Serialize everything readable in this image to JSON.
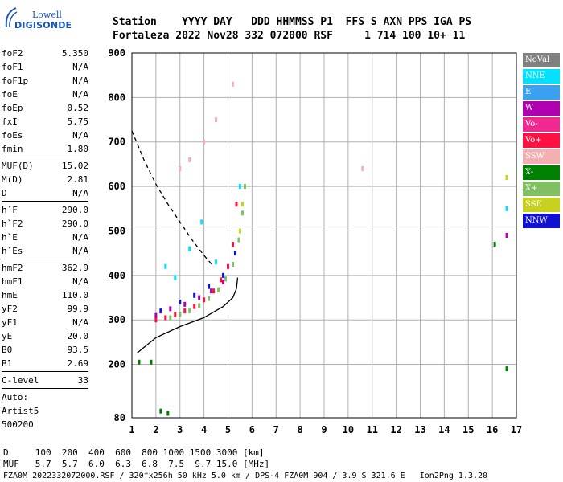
{
  "logo": {
    "line1": "Lowell",
    "line2": "DIGISONDE"
  },
  "header": {
    "line1": "Station    YYYY DAY   DDD HHMMSS P1  FFS S AXN PPS IGA PS",
    "line2": "Fortaleza 2022 Nov28 332 072000 RSF     1 714 100 10+ 11"
  },
  "params": {
    "group1": [
      {
        "name": "foF2",
        "value": "5.350"
      },
      {
        "name": "foF1",
        "value": "N/A"
      },
      {
        "name": "foF1p",
        "value": "N/A"
      },
      {
        "name": "foE",
        "value": "N/A"
      },
      {
        "name": "foEp",
        "value": "0.52"
      },
      {
        "name": "fxI",
        "value": "5.75"
      },
      {
        "name": "foEs",
        "value": "N/A"
      },
      {
        "name": "fmin",
        "value": "1.80"
      }
    ],
    "group2": [
      {
        "name": "MUF(D)",
        "value": "15.02"
      },
      {
        "name": "M(D)",
        "value": "2.81"
      },
      {
        "name": "D",
        "value": "N/A"
      }
    ],
    "group3": [
      {
        "name": "h`F",
        "value": "290.0"
      },
      {
        "name": "h`F2",
        "value": "290.0"
      },
      {
        "name": "h`E",
        "value": "N/A"
      },
      {
        "name": "h`Es",
        "value": "N/A"
      }
    ],
    "group4": [
      {
        "name": "hmF2",
        "value": "362.9"
      },
      {
        "name": "hmF1",
        "value": "N/A"
      },
      {
        "name": "hmE",
        "value": "110.0"
      },
      {
        "name": "yF2",
        "value": "99.9"
      },
      {
        "name": "yF1",
        "value": "N/A"
      },
      {
        "name": "yE",
        "value": "20.0"
      },
      {
        "name": "B0",
        "value": "93.5"
      },
      {
        "name": "B1",
        "value": "2.69"
      }
    ],
    "clevel": {
      "name": "C-level",
      "value": "33"
    },
    "auto": [
      "Auto:",
      "Artist5",
      "500200"
    ]
  },
  "legend": [
    {
      "label": "NoVal",
      "color": "#808080"
    },
    {
      "label": "NNE",
      "color": "#00e0ff"
    },
    {
      "label": "E",
      "color": "#3aa0f0"
    },
    {
      "label": "W",
      "color": "#b000b0"
    },
    {
      "label": "Vo-",
      "color": "#f02890"
    },
    {
      "label": "Vo+",
      "color": "#ff1040"
    },
    {
      "label": "SSW",
      "color": "#f4b0b0"
    },
    {
      "label": "X-",
      "color": "#008000"
    },
    {
      "label": "X+",
      "color": "#80c060"
    },
    {
      "label": "SSE",
      "color": "#c8d020"
    },
    {
      "label": "NNW",
      "color": "#1010d0"
    }
  ],
  "footer": {
    "d_line": "D     100  200  400  600  800 1000 1500 3000 [km]",
    "muf_line": "MUF   5.7  5.7  6.0  6.3  6.8  7.5  9.7 15.0 [MHz]",
    "info_line": "FZA0M_2022332072000.RSF / 320fx256h 50 kHz 5.0 km / DPS-4 FZA0M 904 / 3.9 S 321.6 E   Ion2Png 1.3.20"
  },
  "chart_data": {
    "type": "scatter",
    "xlim": [
      1,
      17
    ],
    "ylim": [
      80,
      900
    ],
    "xticks": [
      1,
      2,
      3,
      4,
      5,
      6,
      7,
      8,
      9,
      10,
      11,
      12,
      13,
      14,
      15,
      16,
      17
    ],
    "yticks": [
      80,
      200,
      300,
      400,
      500,
      600,
      700,
      800,
      900
    ],
    "grid": true,
    "legend_position": "right",
    "series": [
      {
        "name": "Vo+",
        "color": "#ff1040",
        "x": [
          2.0,
          2.4,
          2.8,
          3.2,
          3.6,
          4.0,
          4.4,
          4.7,
          5.0,
          5.2,
          5.35
        ],
        "y": [
          300,
          305,
          312,
          320,
          330,
          345,
          365,
          390,
          420,
          470,
          560
        ]
      },
      {
        "name": "X+",
        "color": "#80c060",
        "x": [
          2.6,
          3.0,
          3.4,
          3.8,
          4.2,
          4.6,
          4.9,
          5.2,
          5.45,
          5.6,
          5.7
        ],
        "y": [
          305,
          312,
          320,
          332,
          348,
          368,
          392,
          425,
          480,
          540,
          600
        ]
      },
      {
        "name": "NNW",
        "color": "#1010d0",
        "x": [
          2.2,
          3.0,
          3.6,
          4.2,
          4.8,
          5.3
        ],
        "y": [
          320,
          340,
          355,
          375,
          400,
          450
        ]
      },
      {
        "name": "W",
        "color": "#b000b0",
        "x": [
          2.0,
          2.6,
          3.2,
          3.8,
          4.3,
          4.8,
          16.6
        ],
        "y": [
          310,
          325,
          335,
          350,
          365,
          385,
          490
        ]
      },
      {
        "name": "NNE",
        "color": "#00e0ff",
        "x": [
          2.4,
          2.8,
          3.4,
          3.9,
          4.5,
          5.5,
          16.6
        ],
        "y": [
          420,
          395,
          460,
          520,
          430,
          600,
          550
        ]
      },
      {
        "name": "SSW",
        "color": "#f4b0b0",
        "x": [
          3.0,
          3.4,
          4.0,
          4.5,
          5.2,
          10.6
        ],
        "y": [
          640,
          660,
          700,
          750,
          830,
          640
        ]
      },
      {
        "name": "X-",
        "color": "#008000",
        "x": [
          1.3,
          1.8,
          2.2,
          2.5,
          16.1,
          16.6
        ],
        "y": [
          205,
          205,
          95,
          90,
          470,
          190
        ]
      },
      {
        "name": "SSE",
        "color": "#c8d020",
        "x": [
          5.5,
          5.6,
          16.6
        ],
        "y": [
          500,
          560,
          620
        ]
      }
    ],
    "curves": [
      {
        "style": "dashed",
        "x": [
          1.0,
          1.5,
          2.0,
          2.5,
          3.0,
          3.5,
          4.0,
          4.4
        ],
        "y": [
          725,
          660,
          605,
          560,
          520,
          480,
          445,
          420
        ]
      },
      {
        "style": "solid",
        "x": [
          1.2,
          2.0,
          3.0,
          4.0,
          4.8,
          5.2,
          5.35,
          5.4
        ],
        "y": [
          225,
          260,
          285,
          305,
          330,
          350,
          370,
          395
        ]
      }
    ]
  }
}
